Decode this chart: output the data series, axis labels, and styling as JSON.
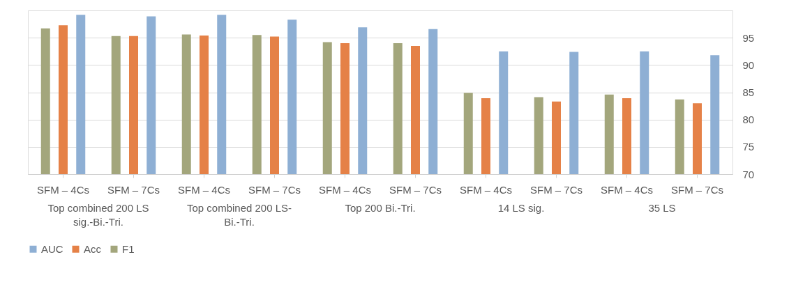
{
  "chart_data": {
    "type": "bar",
    "categories": [
      "SFM – 4Cs",
      "SFM – 7Cs",
      "SFM – 4Cs",
      "SFM – 7Cs",
      "SFM – 4Cs",
      "SFM – 7Cs",
      "SFM – 4Cs",
      "SFM – 7Cs",
      "SFM – 4Cs",
      "SFM – 7Cs"
    ],
    "series": [
      {
        "name": "F1",
        "color": "#a3a67c",
        "values": [
          96.7,
          95.3,
          95.6,
          95.5,
          94.2,
          94.0,
          84.9,
          84.1,
          84.6,
          83.7
        ]
      },
      {
        "name": "Acc",
        "color": "#e58147",
        "values": [
          97.3,
          95.3,
          95.4,
          95.2,
          94.0,
          93.5,
          83.9,
          83.3,
          83.9,
          83.0
        ]
      },
      {
        "name": "AUC",
        "color": "#8eafd4",
        "values": [
          99.2,
          98.9,
          99.2,
          98.3,
          96.9,
          96.6,
          92.5,
          92.4,
          92.5,
          91.8
        ]
      }
    ],
    "annotations": [
      "Top combined 200 LS\nsig.-Bi.-Tri.",
      "Top combined  200 LS-\nBi.-Tri.",
      "Top 200 Bi.-Tri.",
      "14 LS sig.",
      "35 LS"
    ],
    "ylim": [
      70,
      100
    ],
    "yticks": [
      70,
      75,
      80,
      85,
      90,
      95,
      {
        "value": 100,
        "label": null
      }
    ],
    "grid": "y",
    "legend": "bottom"
  }
}
